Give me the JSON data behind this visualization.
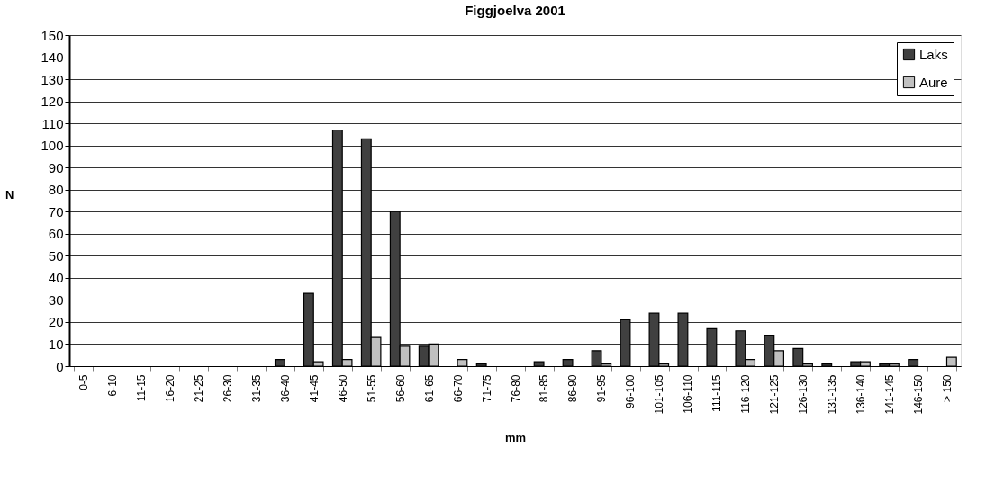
{
  "chart_data": {
    "type": "bar",
    "title": "Figgjoelva 2001",
    "xlabel": "mm",
    "ylabel": "N",
    "categories": [
      "0-5",
      "6-10",
      "11-15",
      "16-20",
      "21-25",
      "26-30",
      "31-35",
      "36-40",
      "41-45",
      "46-50",
      "51-55",
      "56-60",
      "61-65",
      "66-70",
      "71-75",
      "76-80",
      "81-85",
      "86-90",
      "91-95",
      "96-100",
      "101-105",
      "106-110",
      "111-115",
      "116-120",
      "121-125",
      "126-130",
      "131-135",
      "136-140",
      "141-145",
      "146-150",
      "> 150"
    ],
    "series": [
      {
        "name": "Laks",
        "color": "#404040",
        "values": [
          0,
          0,
          0,
          0,
          0,
          0,
          0,
          3,
          33,
          107,
          103,
          70,
          9,
          0,
          1,
          0,
          2,
          3,
          7,
          21,
          24,
          24,
          17,
          16,
          14,
          8,
          1,
          2,
          1,
          3,
          0
        ]
      },
      {
        "name": "Aure",
        "color": "#c0c0c0",
        "values": [
          0,
          0,
          0,
          0,
          0,
          0,
          0,
          0,
          2,
          3,
          13,
          9,
          10,
          3,
          0,
          0,
          0,
          0,
          1,
          0,
          1,
          0,
          0,
          3,
          7,
          1,
          0,
          2,
          1,
          0,
          4
        ]
      }
    ],
    "ylim": [
      0,
      150
    ],
    "yticks": [
      0,
      10,
      20,
      30,
      40,
      50,
      60,
      70,
      80,
      90,
      100,
      110,
      120,
      130,
      140,
      150
    ],
    "grid": "y",
    "legend": "top right"
  }
}
